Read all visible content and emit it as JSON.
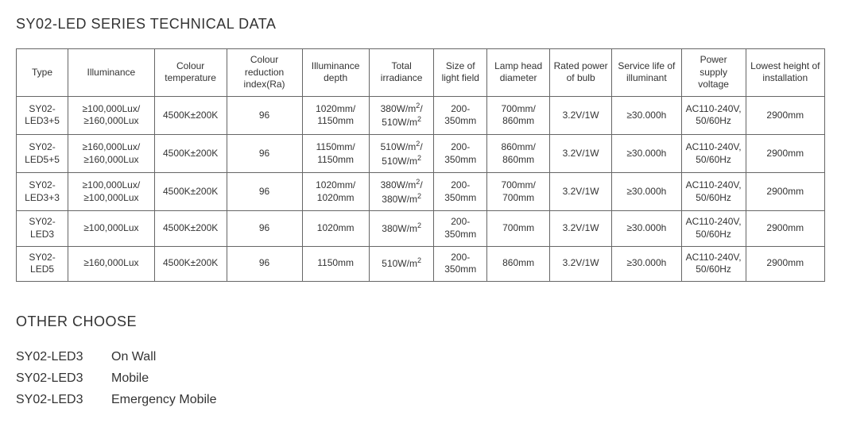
{
  "title": "SY02-LED SERIES TECHNICAL DATA",
  "table": {
    "headers": [
      "Type",
      "Illuminance",
      "Colour temperature",
      "Colour reduction index(Ra)",
      "Illuminance depth",
      "Total irradiance",
      "Size of light field",
      "Lamp head diameter",
      "Rated power of bulb",
      "Service life of illuminant",
      "Power supply voltage",
      "Lowest height of installation"
    ],
    "rows": [
      {
        "type": "SY02-LED3+5",
        "illuminance": "≥100,000Lux/ ≥160,000Lux",
        "colour_temp": "4500K±200K",
        "cri": "96",
        "depth": "1020mm/ 1150mm",
        "irradiance_html": "380W/m<span class=\"sup\">2</span>/ 510W/m<span class=\"sup\">2</span>",
        "light_field": "200-350mm",
        "head_diameter": "700mm/ 860mm",
        "rated_power": "3.2V/1W",
        "service_life": "≥30.000h",
        "voltage": "AC110-240V, 50/60Hz",
        "install_height": "2900mm"
      },
      {
        "type": "SY02-LED5+5",
        "illuminance": "≥160,000Lux/ ≥160,000Lux",
        "colour_temp": "4500K±200K",
        "cri": "96",
        "depth": "1150mm/ 1150mm",
        "irradiance_html": "510W/m<span class=\"sup\">2</span>/ 510W/m<span class=\"sup\">2</span>",
        "light_field": "200-350mm",
        "head_diameter": "860mm/ 860mm",
        "rated_power": "3.2V/1W",
        "service_life": "≥30.000h",
        "voltage": "AC110-240V, 50/60Hz",
        "install_height": "2900mm"
      },
      {
        "type": "SY02-LED3+3",
        "illuminance": "≥100,000Lux/ ≥100,000Lux",
        "colour_temp": "4500K±200K",
        "cri": "96",
        "depth": "1020mm/ 1020mm",
        "irradiance_html": "380W/m<span class=\"sup\">2</span>/ 380W/m<span class=\"sup\">2</span>",
        "light_field": "200-350mm",
        "head_diameter": "700mm/ 700mm",
        "rated_power": "3.2V/1W",
        "service_life": "≥30.000h",
        "voltage": "AC110-240V, 50/60Hz",
        "install_height": "2900mm"
      },
      {
        "type": "SY02-LED3",
        "illuminance": "≥100,000Lux",
        "colour_temp": "4500K±200K",
        "cri": "96",
        "depth": "1020mm",
        "irradiance_html": "380W/m<span class=\"sup\">2</span>",
        "light_field": "200-350mm",
        "head_diameter": "700mm",
        "rated_power": "3.2V/1W",
        "service_life": "≥30.000h",
        "voltage": "AC110-240V, 50/60Hz",
        "install_height": "2900mm"
      },
      {
        "type": "SY02-LED5",
        "illuminance": "≥160,000Lux",
        "colour_temp": "4500K±200K",
        "cri": "96",
        "depth": "1150mm",
        "irradiance_html": "510W/m<span class=\"sup\">2</span>",
        "light_field": "200-350mm",
        "head_diameter": "860mm",
        "rated_power": "3.2V/1W",
        "service_life": "≥30.000h",
        "voltage": "AC110-240V, 50/60Hz",
        "install_height": "2900mm"
      }
    ]
  },
  "other": {
    "title": "OTHER CHOOSE",
    "items": [
      {
        "model": "SY02-LED3",
        "variant": "On Wall"
      },
      {
        "model": "SY02-LED3",
        "variant": "Mobile"
      },
      {
        "model": "SY02-LED3",
        "variant": "Emergency Mobile"
      }
    ]
  }
}
